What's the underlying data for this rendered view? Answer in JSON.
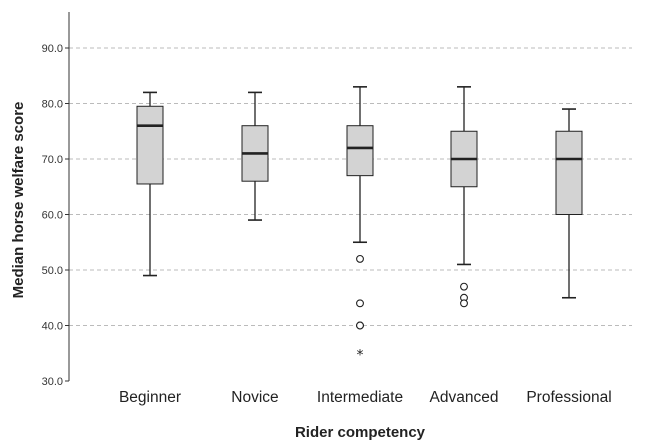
{
  "chart_data": {
    "type": "box",
    "xlabel": "Rider competency",
    "ylabel": "Median horse welfare score",
    "ylim": [
      30,
      95
    ],
    "yticks": [
      "30.0",
      "40.0",
      "50.0",
      "60.0",
      "70.0",
      "80.0",
      "90.0"
    ],
    "grid": "horizontal dashed",
    "categories": [
      "Beginner",
      "Novice",
      "Intermediate",
      "Advanced",
      "Professional"
    ],
    "boxes": [
      {
        "category": "Beginner",
        "whisker_low": 49,
        "q1": 65.5,
        "median": 76,
        "q3": 79.5,
        "whisker_high": 82,
        "outliers": [],
        "extremes": []
      },
      {
        "category": "Novice",
        "whisker_low": 59,
        "q1": 66,
        "median": 71,
        "q3": 76,
        "whisker_high": 82,
        "outliers": [],
        "extremes": []
      },
      {
        "category": "Intermediate",
        "whisker_low": 55,
        "q1": 67,
        "median": 72,
        "q3": 76,
        "whisker_high": 83,
        "outliers": [
          52,
          44,
          40,
          40
        ],
        "extremes": [
          35
        ]
      },
      {
        "category": "Advanced",
        "whisker_low": 51,
        "q1": 65,
        "median": 70,
        "q3": 75,
        "whisker_high": 83,
        "outliers": [
          47,
          45,
          44
        ],
        "extremes": []
      },
      {
        "category": "Professional",
        "whisker_low": 45,
        "q1": 60,
        "median": 70,
        "q3": 75,
        "whisker_high": 79,
        "outliers": [],
        "extremes": []
      }
    ],
    "colors": {
      "box_fill": "#d3d3d3",
      "line": "#222222",
      "grid": "#bbbbbb",
      "axis": "#333333"
    },
    "extreme_marker": "*"
  }
}
